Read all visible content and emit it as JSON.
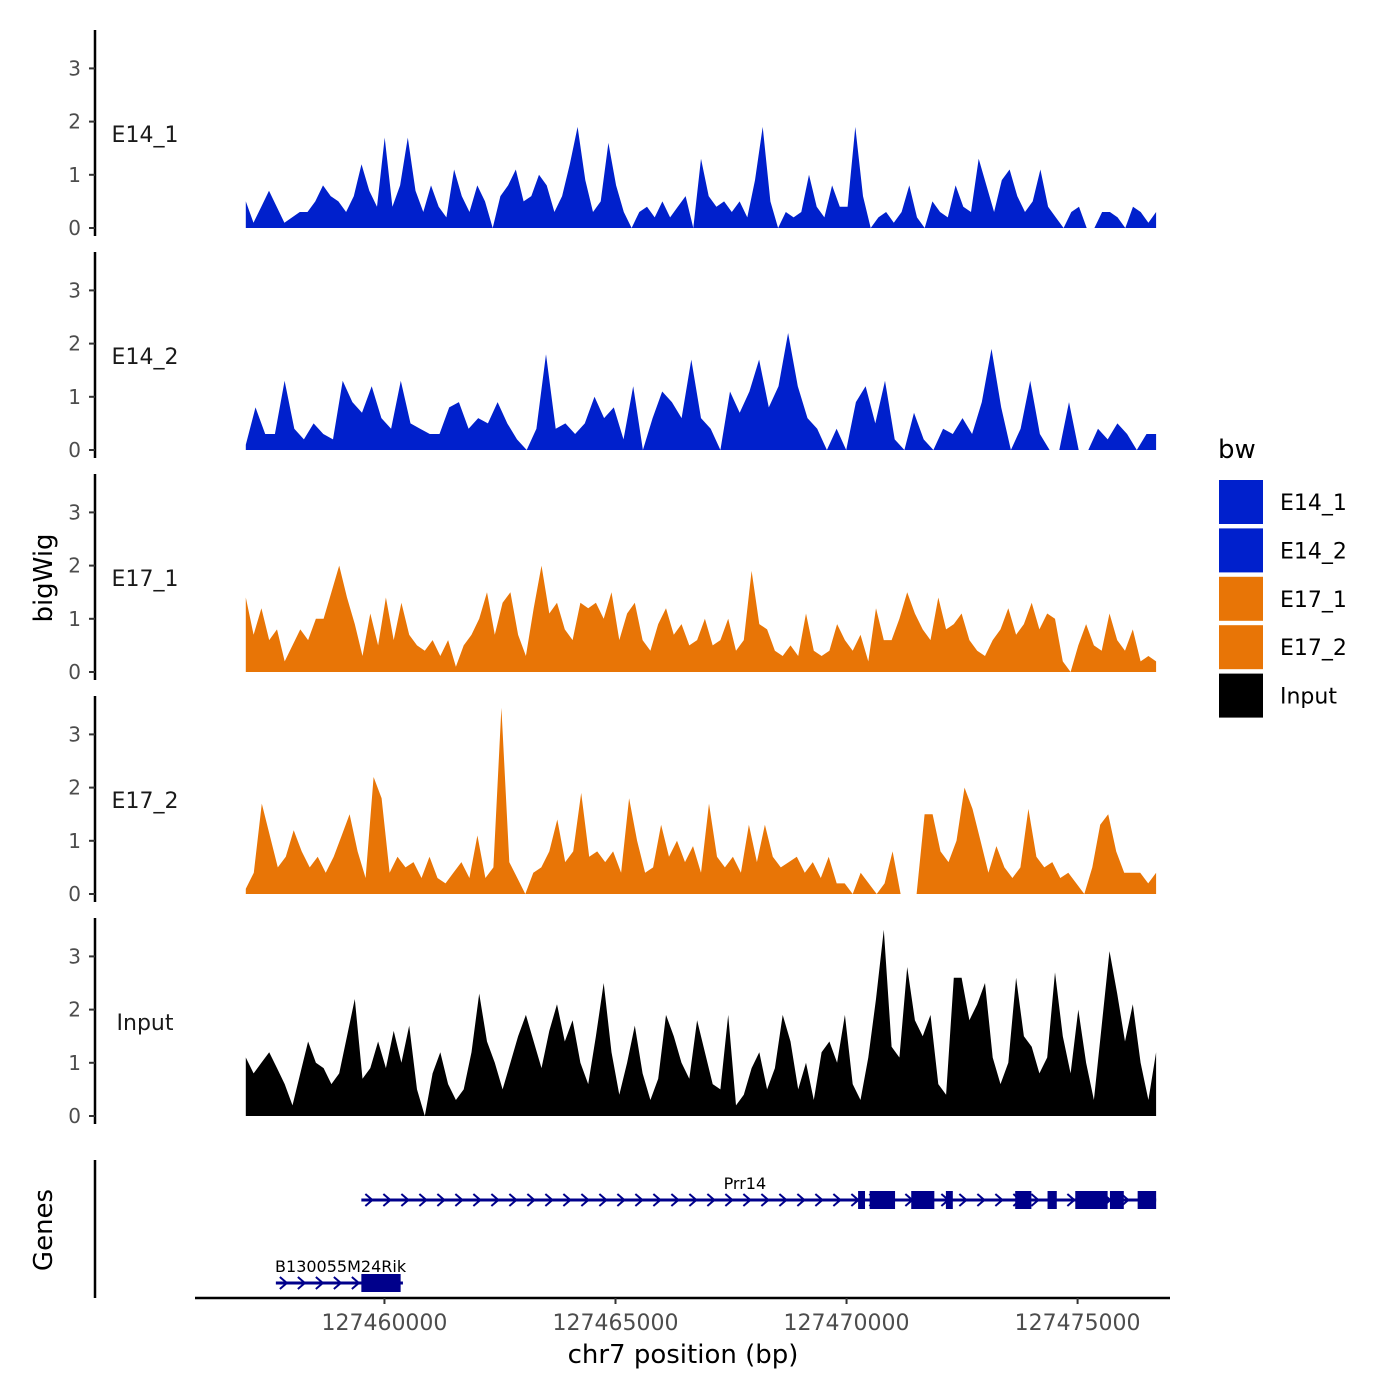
{
  "chart_data": {
    "type": "area",
    "chromosome": "chr7",
    "xlabel": "chr7 position (bp)",
    "ylabel": "bigWig",
    "gene_panel_label": "Genes",
    "xlim": [
      127455900,
      127477000
    ],
    "data_xrange": [
      127457000,
      127476700
    ],
    "ylim": [
      0,
      3.7
    ],
    "y_ticks": [
      0,
      1,
      2,
      3
    ],
    "x_ticks": [
      127460000,
      127465000,
      127470000,
      127475000
    ],
    "x_tick_labels": [
      "127460000",
      "127465000",
      "127470000",
      "127475000"
    ],
    "legend": {
      "title": "bw",
      "position": "right",
      "entries": [
        {
          "label": "E14_1",
          "color": "#0020CC"
        },
        {
          "label": "E14_2",
          "color": "#0020CC"
        },
        {
          "label": "E17_1",
          "color": "#E87506"
        },
        {
          "label": "E17_2",
          "color": "#E87506"
        },
        {
          "label": "Input",
          "color": "#000000"
        }
      ]
    },
    "series": [
      {
        "name": "E14_1",
        "color": "#0020CC",
        "values": [
          0.5,
          0.1,
          0.4,
          0.7,
          0.4,
          0.1,
          0.2,
          0.3,
          0.3,
          0.5,
          0.8,
          0.6,
          0.5,
          0.3,
          0.6,
          1.2,
          0.7,
          0.4,
          1.7,
          0.4,
          0.8,
          1.7,
          0.7,
          0.3,
          0.8,
          0.4,
          0.2,
          1.1,
          0.6,
          0.3,
          0.8,
          0.5,
          0,
          0.6,
          0.8,
          1.1,
          0.5,
          0.6,
          1.0,
          0.8,
          0.3,
          0.6,
          1.2,
          1.9,
          0.9,
          0.3,
          0.5,
          1.6,
          0.8,
          0.3,
          0,
          0.3,
          0.4,
          0.2,
          0.5,
          0.2,
          0.4,
          0.6,
          0,
          1.3,
          0.6,
          0.4,
          0.5,
          0.3,
          0.5,
          0.2,
          0.9,
          1.9,
          0.5,
          0,
          0.3,
          0.2,
          0.3,
          1.0,
          0.4,
          0.2,
          0.8,
          0.4,
          0.4,
          1.9,
          0.6,
          0,
          0.2,
          0.3,
          0.1,
          0.3,
          0.8,
          0.2,
          0,
          0.5,
          0.3,
          0.2,
          0.8,
          0.4,
          0.3,
          1.3,
          0.8,
          0.3,
          0.9,
          1.1,
          0.6,
          0.3,
          0.5,
          1.1,
          0.4,
          0.2,
          0,
          0.3,
          0.4,
          0,
          0,
          0.3,
          0.3,
          0.2,
          0,
          0.4,
          0.3,
          0.1,
          0.3
        ]
      },
      {
        "name": "E14_2",
        "color": "#0020CC",
        "values": [
          0.1,
          0.8,
          0.3,
          0.3,
          1.3,
          0.4,
          0.2,
          0.5,
          0.3,
          0.2,
          1.3,
          0.9,
          0.7,
          1.2,
          0.6,
          0.4,
          1.3,
          0.5,
          0.4,
          0.3,
          0.3,
          0.8,
          0.9,
          0.4,
          0.6,
          0.5,
          0.9,
          0.5,
          0.2,
          0,
          0.4,
          1.8,
          0.4,
          0.5,
          0.3,
          0.5,
          1.0,
          0.6,
          0.8,
          0.2,
          1.2,
          0,
          0.6,
          1.1,
          0.9,
          0.6,
          1.7,
          0.6,
          0.4,
          0,
          1.1,
          0.7,
          1.1,
          1.7,
          0.8,
          1.2,
          2.2,
          1.2,
          0.6,
          0.4,
          0,
          0.4,
          0,
          0.9,
          1.2,
          0.5,
          1.3,
          0.2,
          0,
          0.7,
          0.2,
          0,
          0.4,
          0.3,
          0.6,
          0.3,
          0.9,
          1.9,
          0.8,
          0,
          0.4,
          1.3,
          0.3,
          0,
          0,
          0.9,
          0,
          0,
          0.4,
          0.2,
          0.5,
          0.3,
          0,
          0.3,
          0.3
        ]
      },
      {
        "name": "E17_1",
        "color": "#E87506",
        "values": [
          1.4,
          0.7,
          1.2,
          0.6,
          0.8,
          0.2,
          0.5,
          0.8,
          0.6,
          1.0,
          1.0,
          1.5,
          2.0,
          1.4,
          0.9,
          0.3,
          1.1,
          0.5,
          1.4,
          0.6,
          1.3,
          0.7,
          0.5,
          0.4,
          0.6,
          0.3,
          0.6,
          0.1,
          0.5,
          0.7,
          1.0,
          1.5,
          0.7,
          1.3,
          1.5,
          0.7,
          0.3,
          1.2,
          2.0,
          1.1,
          1.3,
          0.8,
          0.6,
          1.3,
          1.2,
          1.3,
          1.0,
          1.5,
          0.6,
          1.1,
          1.3,
          0.6,
          0.4,
          0.9,
          1.2,
          0.7,
          0.9,
          0.5,
          0.6,
          1.0,
          0.5,
          0.6,
          1.0,
          0.4,
          0.6,
          1.9,
          0.9,
          0.8,
          0.4,
          0.3,
          0.5,
          0.3,
          1.1,
          0.4,
          0.3,
          0.4,
          0.9,
          0.6,
          0.4,
          0.7,
          0.2,
          1.2,
          0.6,
          0.6,
          1.0,
          1.5,
          1.1,
          0.8,
          0.6,
          1.4,
          0.8,
          0.9,
          1.1,
          0.6,
          0.4,
          0.3,
          0.6,
          0.8,
          1.2,
          0.7,
          0.9,
          1.3,
          0.8,
          1.1,
          1.0,
          0.2,
          0,
          0.5,
          0.9,
          0.5,
          0.4,
          1.1,
          0.6,
          0.4,
          0.8,
          0.2,
          0.3,
          0.2
        ]
      },
      {
        "name": "E17_2",
        "color": "#E87506",
        "values": [
          0.1,
          0.4,
          1.7,
          1.1,
          0.5,
          0.7,
          1.2,
          0.8,
          0.5,
          0.7,
          0.4,
          0.7,
          1.1,
          1.5,
          0.8,
          0.3,
          2.2,
          1.8,
          0.4,
          0.7,
          0.5,
          0.6,
          0.3,
          0.7,
          0.3,
          0.2,
          0.4,
          0.6,
          0.3,
          1.1,
          0.3,
          0.5,
          3.5,
          0.6,
          0.3,
          0,
          0.4,
          0.5,
          0.8,
          1.4,
          0.6,
          0.8,
          1.9,
          0.7,
          0.8,
          0.6,
          0.8,
          0.4,
          1.8,
          1.0,
          0.4,
          0.5,
          1.3,
          0.7,
          1.0,
          0.6,
          0.9,
          0.4,
          1.7,
          0.7,
          0.5,
          0.7,
          0.4,
          1.3,
          0.6,
          1.3,
          0.7,
          0.5,
          0.6,
          0.7,
          0.4,
          0.6,
          0.3,
          0.7,
          0.2,
          0.2,
          0,
          0.4,
          0.2,
          0,
          0.2,
          0.8,
          0,
          0,
          0,
          1.5,
          1.5,
          0.8,
          0.6,
          1.0,
          2.0,
          1.6,
          1.0,
          0.4,
          0.9,
          0.5,
          0.3,
          0.5,
          1.6,
          0.7,
          0.5,
          0.6,
          0.3,
          0.4,
          0.2,
          0,
          0.5,
          1.3,
          1.5,
          0.8,
          0.4,
          0.4,
          0.4,
          0.2,
          0.4
        ]
      },
      {
        "name": "Input",
        "color": "#000000",
        "values": [
          1.1,
          0.8,
          1.0,
          1.2,
          0.9,
          0.6,
          0.2,
          0.8,
          1.4,
          1.0,
          0.9,
          0.6,
          0.8,
          1.5,
          2.2,
          0.7,
          0.9,
          1.4,
          0.9,
          1.6,
          1.0,
          1.7,
          0.5,
          0,
          0.8,
          1.2,
          0.6,
          0.3,
          0.5,
          1.2,
          2.3,
          1.4,
          1.0,
          0.5,
          1.0,
          1.5,
          1.9,
          1.4,
          0.9,
          1.6,
          2.1,
          1.4,
          1.8,
          1.0,
          0.6,
          1.5,
          2.5,
          1.2,
          0.4,
          1.0,
          1.7,
          0.8,
          0.3,
          0.7,
          1.9,
          1.5,
          1.0,
          0.7,
          1.8,
          1.2,
          0.6,
          0.5,
          1.9,
          0.2,
          0.4,
          0.9,
          1.2,
          0.5,
          0.9,
          1.9,
          1.4,
          0.5,
          1.0,
          0.3,
          1.2,
          1.4,
          1.0,
          1.9,
          0.6,
          0.3,
          1.1,
          2.2,
          3.5,
          1.3,
          1.1,
          2.8,
          1.8,
          1.5,
          1.9,
          0.6,
          0.4,
          2.6,
          2.6,
          1.8,
          2.1,
          2.5,
          1.1,
          0.6,
          1.0,
          2.6,
          1.5,
          1.3,
          0.8,
          1.1,
          2.7,
          1.5,
          0.8,
          2.0,
          1.0,
          0.3,
          1.7,
          3.1,
          2.3,
          1.4,
          2.1,
          1.0,
          0.3,
          1.2
        ]
      }
    ],
    "genes": [
      {
        "name": "Prr14",
        "strand": "+",
        "start": 127459500,
        "end": 127476700,
        "label_position": 127467800,
        "exons": [
          [
            127470250,
            127470400
          ],
          [
            127470500,
            127471050
          ],
          [
            127471400,
            127471900
          ],
          [
            127472150,
            127472300
          ],
          [
            127473650,
            127474000
          ],
          [
            127474350,
            127474550
          ],
          [
            127474950,
            127475650
          ],
          [
            127475700,
            127476000
          ],
          [
            127476300,
            127476700
          ]
        ]
      },
      {
        "name": "B130055M24Rik",
        "strand": "+",
        "start": 127457650,
        "end": 127460400,
        "label_position": 127459050,
        "exons": [
          [
            127459500,
            127460350
          ]
        ]
      }
    ]
  }
}
